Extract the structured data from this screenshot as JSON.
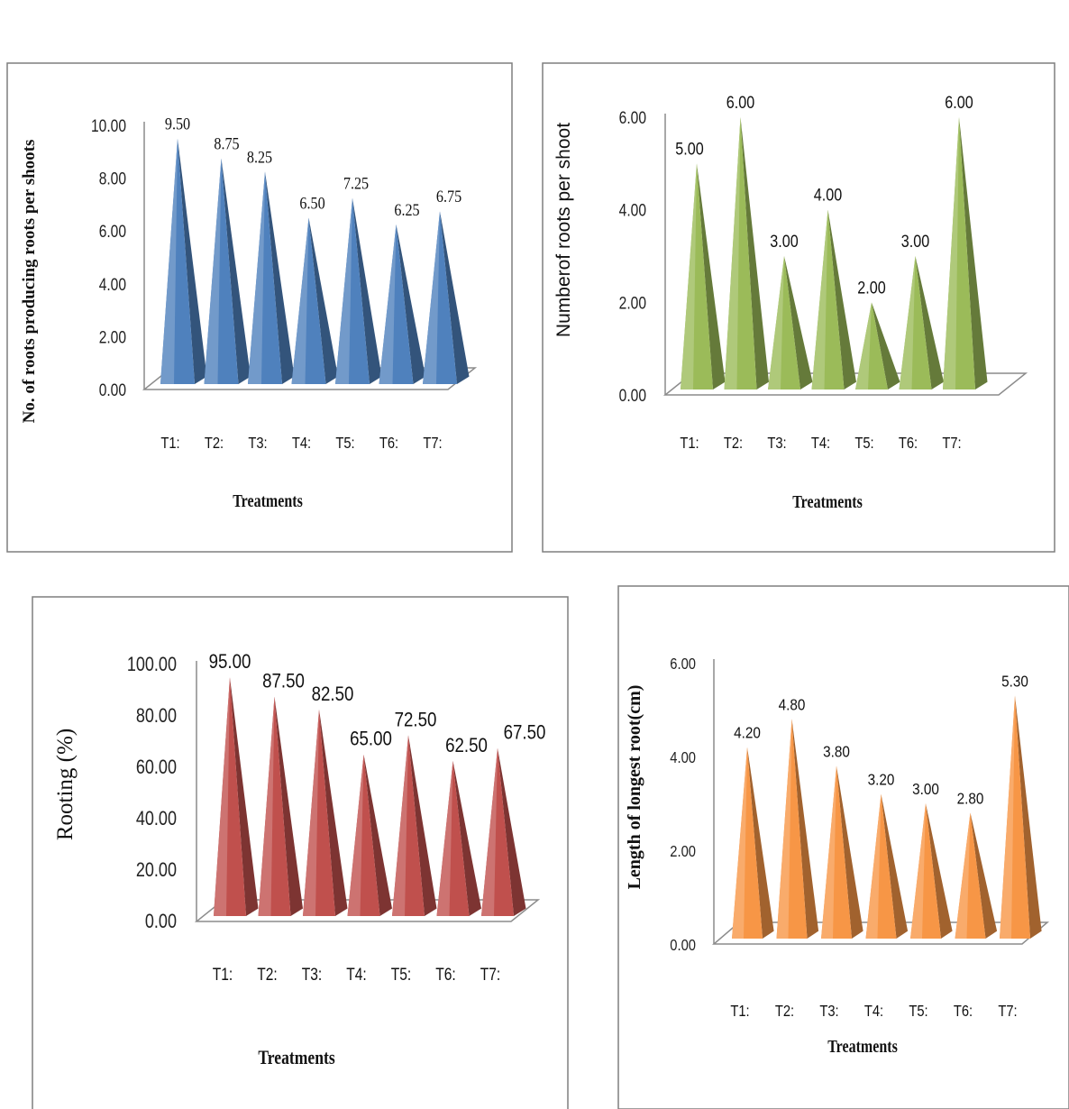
{
  "chart_data": [
    {
      "type": "bar",
      "categories": [
        "T1:",
        "T2:",
        "T3:",
        "T4:",
        "T5:",
        "T6:",
        "T7:"
      ],
      "values": [
        9.5,
        8.75,
        8.25,
        6.5,
        7.25,
        6.25,
        6.75
      ],
      "value_labels": [
        "9.50",
        "8.75",
        "8.25",
        "6.50",
        "7.25",
        "6.25",
        "6.75"
      ],
      "xlabel": "Treatments",
      "ylabel": "No. of roots producing roots per shoots",
      "ylim": [
        0,
        10
      ],
      "yticks": [
        "0.00",
        "2.00",
        "4.00",
        "6.00",
        "8.00",
        "10.00"
      ],
      "color": "#4f81bd"
    },
    {
      "type": "bar",
      "categories": [
        "T1:",
        "T2:",
        "T3:",
        "T4:",
        "T5:",
        "T6:",
        "T7:"
      ],
      "values": [
        5,
        6,
        3,
        4,
        2,
        3,
        6
      ],
      "value_labels": [
        "5.00",
        "6.00",
        "3.00",
        "4.00",
        "2.00",
        "3.00",
        "6.00"
      ],
      "xlabel": "Treatments",
      "ylabel": "Numberof roots per shoot",
      "ylim": [
        0,
        6
      ],
      "yticks": [
        "0.00",
        "2.00",
        "4.00",
        "6.00"
      ],
      "color": "#9bbb59"
    },
    {
      "type": "bar",
      "categories": [
        "T1:",
        "T2:",
        "T3:",
        "T4:",
        "T5:",
        "T6:",
        "T7:"
      ],
      "values": [
        95,
        87.5,
        82.5,
        65,
        72.5,
        62.5,
        67.5
      ],
      "value_labels": [
        "95.00",
        "87.50",
        "82.50",
        "65.00",
        "72.50",
        "62.50",
        "67.50"
      ],
      "xlabel": "Treatments",
      "ylabel": "Rooting (%)",
      "ylim": [
        0,
        100
      ],
      "yticks": [
        "0.00",
        "20.00",
        "40.00",
        "60.00",
        "80.00",
        "100.00"
      ],
      "color": "#c0504d"
    },
    {
      "type": "bar",
      "categories": [
        "T1:",
        "T2:",
        "T3:",
        "T4:",
        "T5:",
        "T6:",
        "T7:"
      ],
      "values": [
        4.2,
        4.8,
        3.8,
        3.2,
        3.0,
        2.8,
        5.3
      ],
      "value_labels": [
        "4.20",
        "4.80",
        "3.80",
        "3.20",
        "3.00",
        "2.80",
        "5.30"
      ],
      "xlabel": "Treatments",
      "ylabel": "Length of longest root(cm)",
      "ylim": [
        0,
        6
      ],
      "yticks": [
        "0.00",
        "2.00",
        "4.00",
        "6.00"
      ],
      "color": "#f79646"
    }
  ]
}
